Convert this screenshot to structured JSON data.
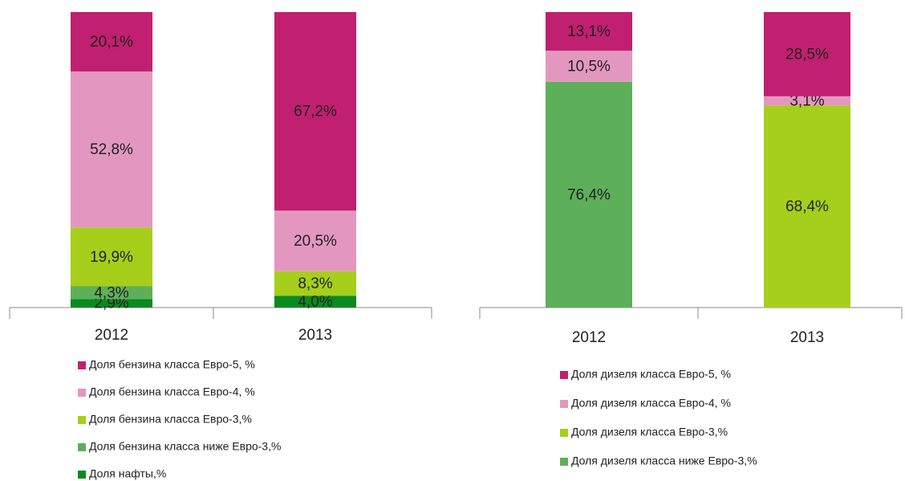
{
  "chart_data": [
    {
      "type": "stacked_bar",
      "categories": [
        "2012",
        "2013"
      ],
      "ylim": [
        0,
        100
      ],
      "series": [
        {
          "name": "Доля бензина класса Евро-5, %",
          "color": "#c0206f",
          "values": [
            20.1,
            67.2
          ],
          "value_labels": [
            "20,1%",
            "67,2%"
          ]
        },
        {
          "name": "Доля бензина класса Евро-4, %",
          "color": "#e397bf",
          "values": [
            52.8,
            20.5
          ],
          "value_labels": [
            "52,8%",
            "20,5%"
          ]
        },
        {
          "name": "Доля бензина класса Евро-3,%",
          "color": "#a5cf1a",
          "values": [
            19.9,
            8.3
          ],
          "value_labels": [
            "19,9%",
            "8,3%"
          ]
        },
        {
          "name": "Доля бензина класса ниже Евро-3,%",
          "color": "#5daf5a",
          "values": [
            4.3,
            null
          ],
          "value_labels": [
            "4,3%",
            null
          ]
        },
        {
          "name": "Доля нафты,%",
          "color": "#0a8a1f",
          "values": [
            2.9,
            4.0
          ],
          "value_labels": [
            "2,9%",
            "4,0%"
          ]
        }
      ]
    },
    {
      "type": "stacked_bar",
      "categories": [
        "2012",
        "2013"
      ],
      "ylim": [
        0,
        100
      ],
      "series": [
        {
          "name": "Доля дизеля класса Евро-5, %",
          "color": "#c0206f",
          "values": [
            13.1,
            28.5
          ],
          "value_labels": [
            "13,1%",
            "28,5%"
          ]
        },
        {
          "name": "Доля дизеля класса Евро-4, %",
          "color": "#e397bf",
          "values": [
            10.5,
            3.1
          ],
          "value_labels": [
            "10,5%",
            "3,1%"
          ]
        },
        {
          "name": "Доля дизеля класса Евро-3,%",
          "color": "#a5cf1a",
          "values": [
            null,
            68.4
          ],
          "value_labels": [
            null,
            "68,4%"
          ]
        },
        {
          "name": "Доля дизеля класса ниже Евро-3,%",
          "color": "#5daf5a",
          "values": [
            76.4,
            null
          ],
          "value_labels": [
            "76,4%",
            null
          ]
        }
      ]
    }
  ]
}
